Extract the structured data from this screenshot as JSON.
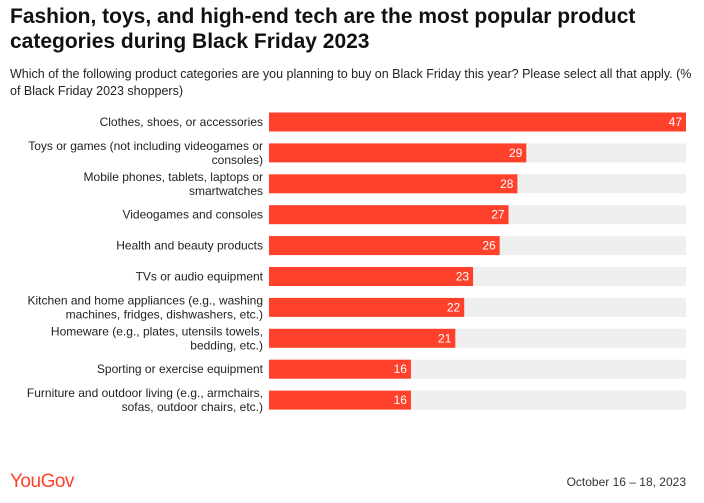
{
  "header": {
    "title": "Fashion, toys, and high-end tech are the most popular product categories during Black Friday 2023",
    "subtitle": "Which of the following product categories are you planning to buy on Black Friday this year? Please select all that apply. (% of Black Friday 2023 shoppers)"
  },
  "footer": {
    "brand": "YouGov",
    "date": "October 16 – 18, 2023"
  },
  "colors": {
    "bar": "#ff412c",
    "track": "#efefef"
  },
  "chart_data": {
    "type": "bar",
    "orientation": "horizontal",
    "title": "Fashion, toys, and high-end tech are the most popular product categories during Black Friday 2023",
    "subtitle": "Which of the following product categories are you planning to buy on Black Friday this year? Please select all that apply. (% of Black Friday 2023 shoppers)",
    "xlim": [
      0,
      47
    ],
    "grid": false,
    "legend": "none",
    "categories": [
      [
        "Clothes, shoes, or accessories"
      ],
      [
        "Toys or games (not including videogames or",
        "consoles)"
      ],
      [
        "Mobile phones, tablets, laptops or",
        "smartwatches"
      ],
      [
        "Videogames and consoles"
      ],
      [
        "Health and beauty products"
      ],
      [
        "TVs or audio equipment"
      ],
      [
        "Kitchen and home appliances (e.g., washing",
        "machines, fridges, dishwashers, etc.)"
      ],
      [
        "Homeware (e.g., plates, utensils towels,",
        "bedding, etc.)"
      ],
      [
        "Sporting or exercise equipment"
      ],
      [
        "Furniture and outdoor living (e.g., armchairs,",
        "sofas, outdoor chairs, etc.)"
      ]
    ],
    "values": [
      47,
      29,
      28,
      27,
      26,
      23,
      22,
      21,
      16,
      16
    ]
  }
}
